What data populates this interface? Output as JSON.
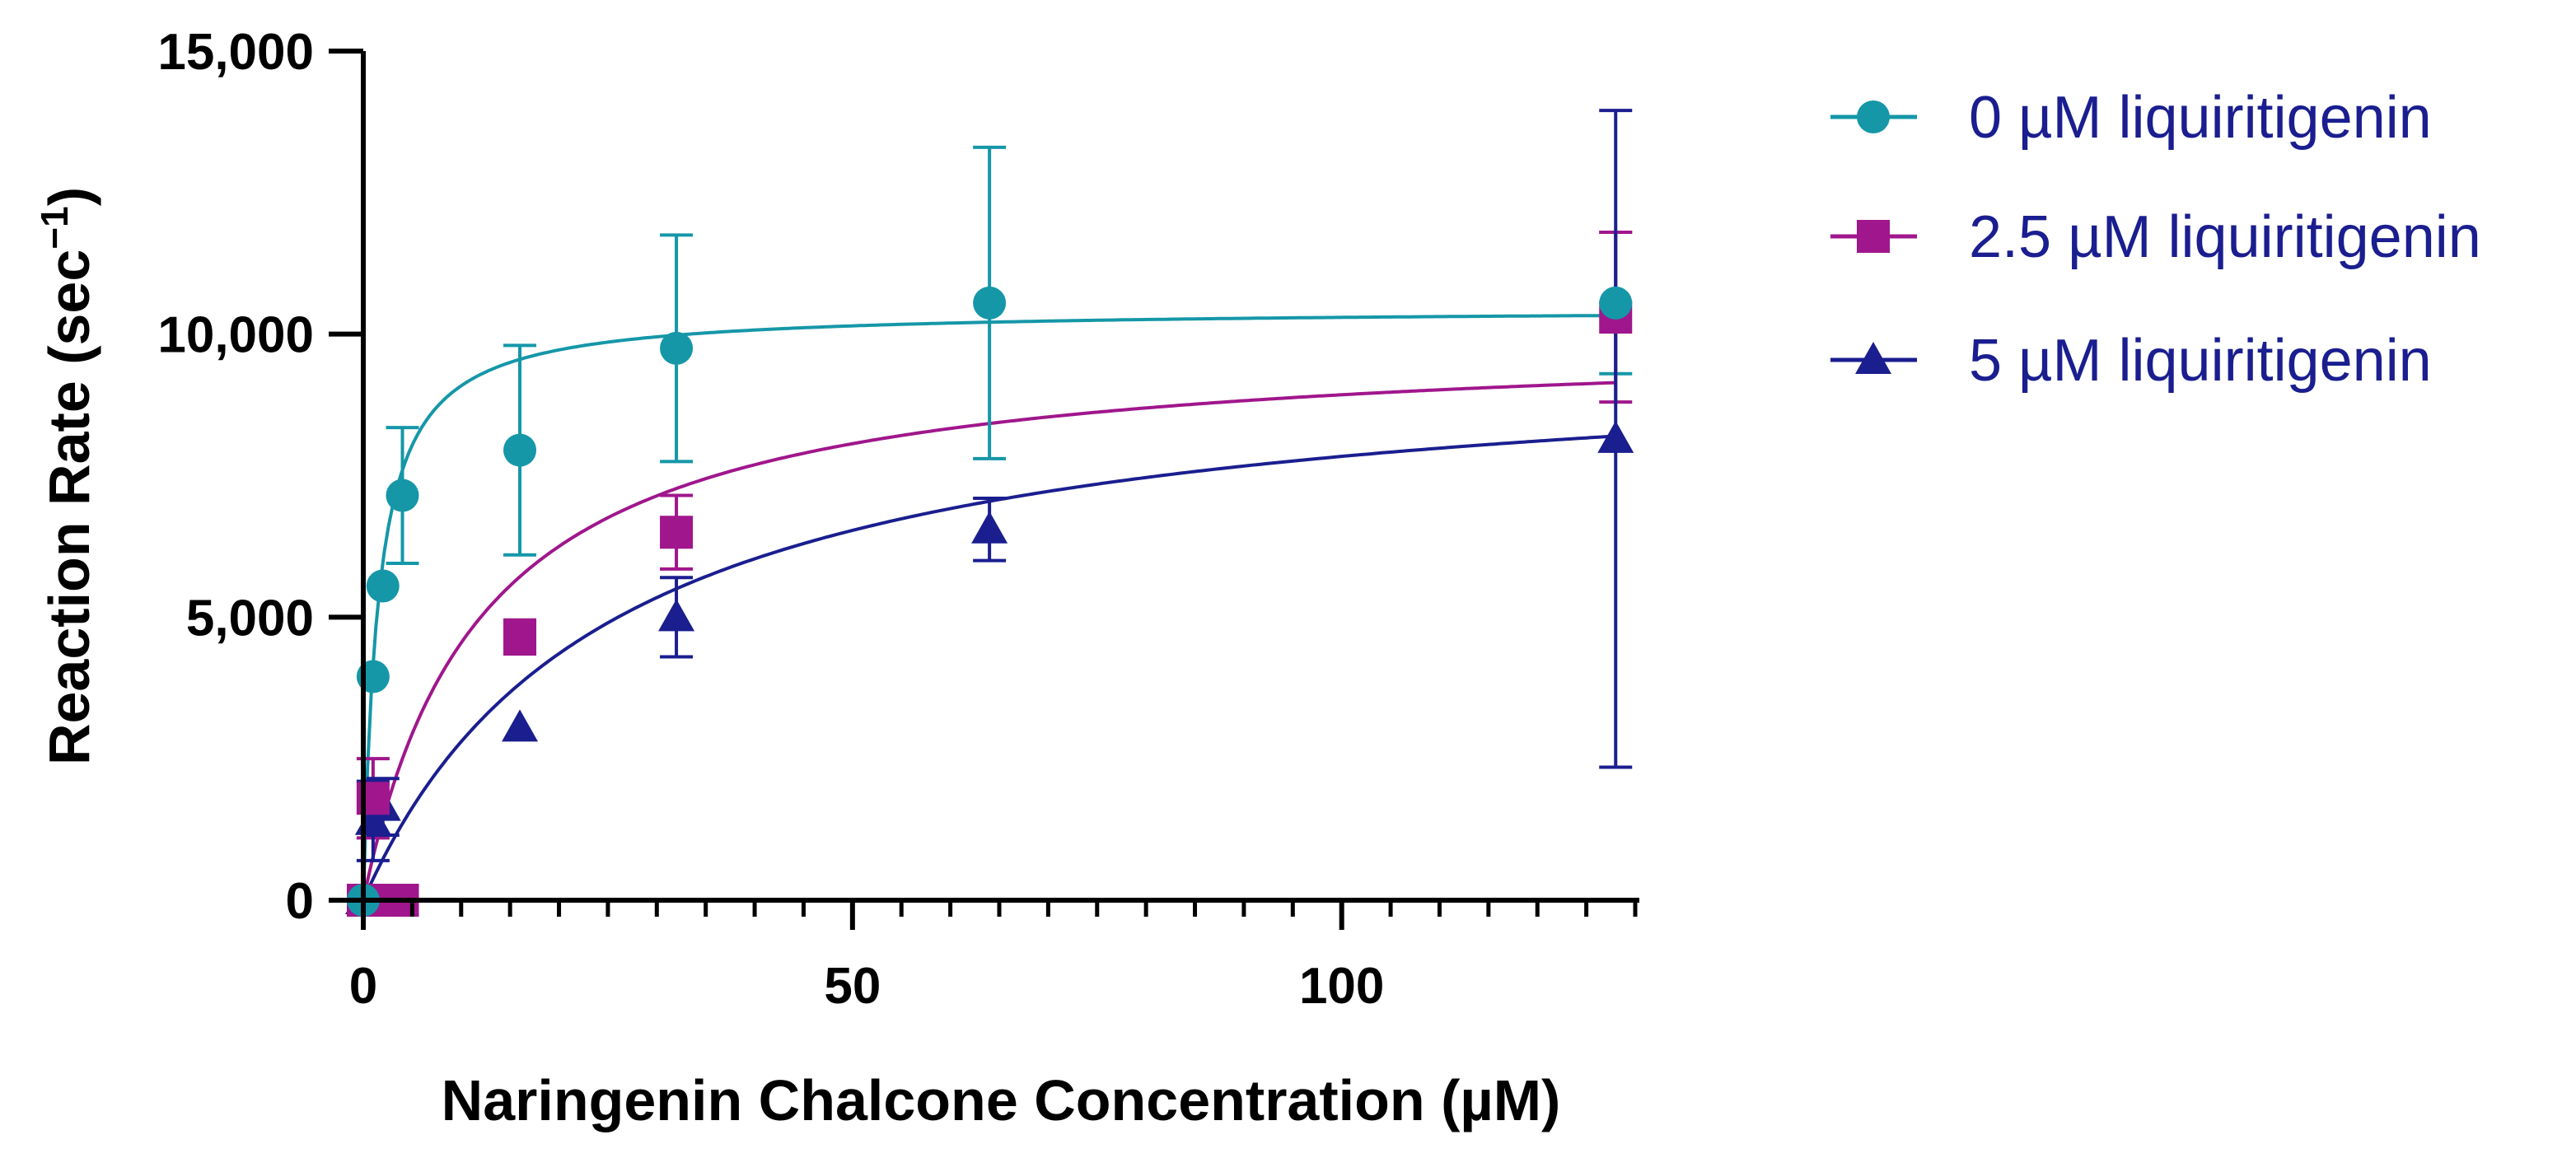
{
  "chart_data": {
    "type": "scatter",
    "title": "",
    "xlabel": "Naringenin Chalcone Concentration (µM)",
    "ylabel_main": "Reaction Rate (sec",
    "ylabel_sup": "−1",
    "ylabel_close": ")",
    "xlim": [
      0,
      130
    ],
    "ylim": [
      0,
      15000
    ],
    "x_major_ticks": [
      0,
      50,
      100
    ],
    "x_tick_labels": [
      "0",
      "50",
      "100"
    ],
    "x_minor_step": 5,
    "y_major_ticks": [
      0,
      5000,
      10000,
      15000
    ],
    "y_tick_labels": [
      "0",
      "5,000",
      "10,000",
      "15,000"
    ],
    "grid": false,
    "legend_position": "top-right outside",
    "series": [
      {
        "name": "0 µM liquiritigenin",
        "color": "#1597a8",
        "marker": "circle",
        "points": [
          {
            "x": 0,
            "y": 0,
            "err": 0
          },
          {
            "x": 1,
            "y": 3950,
            "err": 0
          },
          {
            "x": 2,
            "y": 5550,
            "err": 0
          },
          {
            "x": 4,
            "y": 7150,
            "err": 1200
          },
          {
            "x": 16,
            "y": 7950,
            "err": 1850
          },
          {
            "x": 32,
            "y": 9750,
            "err": 2000
          },
          {
            "x": 64,
            "y": 10550,
            "err": 2750
          },
          {
            "x": 128,
            "y": 10550,
            "err": 1250
          }
        ],
        "fit": {
          "vmax": 10450,
          "km": 1.5
        }
      },
      {
        "name": "2.5 µM liquiritigenin",
        "color": "#a0168c",
        "marker": "square",
        "points": [
          {
            "x": 0,
            "y": 0,
            "err": 0
          },
          {
            "x": 1,
            "y": 1800,
            "err": 700
          },
          {
            "x": 2,
            "y": 0,
            "err": 0
          },
          {
            "x": 4,
            "y": 0,
            "err": 0
          },
          {
            "x": 16,
            "y": 4650,
            "err": 300
          },
          {
            "x": 32,
            "y": 6500,
            "err": 650
          },
          {
            "x": 128,
            "y": 10300,
            "err": 1500
          }
        ],
        "fit": {
          "vmax": 10000,
          "km": 12
        }
      },
      {
        "name": "5 µM liquiritigenin",
        "color": "#1a1e8f",
        "marker": "triangle",
        "points": [
          {
            "x": 0,
            "y": 0,
            "err": 0
          },
          {
            "x": 1,
            "y": 1400,
            "err": 700
          },
          {
            "x": 2,
            "y": 1650,
            "err": 500
          },
          {
            "x": 16,
            "y": 3050,
            "err": 0
          },
          {
            "x": 32,
            "y": 5000,
            "err": 700
          },
          {
            "x": 64,
            "y": 6550,
            "err": 550
          },
          {
            "x": 128,
            "y": 8150,
            "err": 5800
          }
        ],
        "fit": {
          "vmax": 9800,
          "km": 25
        }
      }
    ]
  }
}
